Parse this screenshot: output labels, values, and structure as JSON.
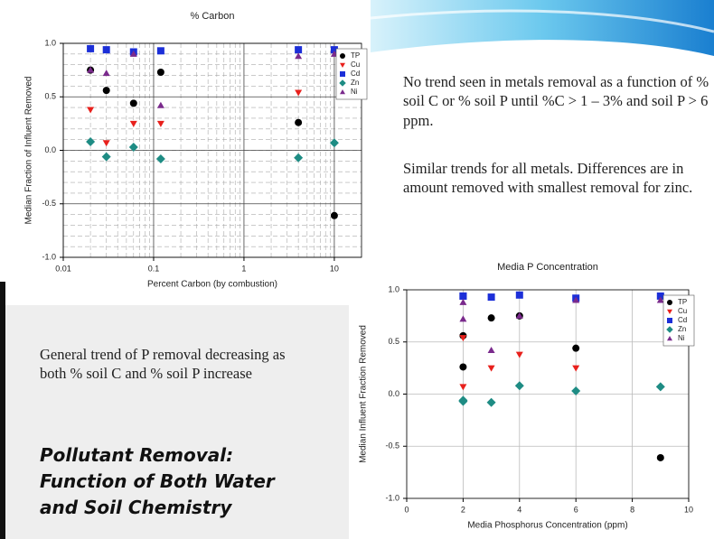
{
  "chart_data": [
    {
      "type": "scatter",
      "title": "% Carbon",
      "x_label": "Percent Carbon (by combustion)",
      "y_label": "Median Fraction of Influent Removed",
      "xscale": "log",
      "xlim": [
        0.01,
        20
      ],
      "xticks": [
        0.01,
        0.1,
        1,
        10
      ],
      "ylim": [
        -1,
        1
      ],
      "yticks": [
        {
          "value": -1,
          "label": "-1.0"
        },
        -0.5,
        {
          "value": 0,
          "label": "0.0"
        },
        0.5,
        {
          "value": 1,
          "label": "1.0"
        }
      ],
      "grid": true,
      "minor_grid": true,
      "legend": "upper right",
      "x": [
        0.02,
        0.03,
        0.06,
        0.12,
        4,
        10
      ],
      "series": [
        {
          "name": "TP",
          "color": "#000000",
          "marker": "circle",
          "values": [
            0.75,
            0.56,
            0.44,
            0.73,
            0.26,
            -0.61
          ]
        },
        {
          "name": "Cu",
          "color": "#e8201c",
          "marker": "triangle-down",
          "values": [
            0.38,
            0.07,
            0.25,
            0.25,
            0.54,
            0.92
          ]
        },
        {
          "name": "Cd",
          "color": "#1c2fd8",
          "marker": "square",
          "values": [
            0.95,
            0.94,
            0.92,
            0.93,
            0.94,
            0.94
          ]
        },
        {
          "name": "Zn",
          "color": "#1e8c84",
          "marker": "diamond",
          "values": [
            0.08,
            -0.06,
            0.03,
            -0.08,
            -0.07,
            0.07
          ]
        },
        {
          "name": "Ni",
          "color": "#7a2a8c",
          "marker": "triangle-up",
          "values": [
            0.75,
            0.72,
            0.9,
            0.42,
            0.88,
            0.9
          ]
        }
      ]
    },
    {
      "type": "scatter",
      "title": "Media P Concentration",
      "x_label": "Media Phosphorus Concentration (ppm)",
      "y_label": "Median Influent Fraction Removed",
      "xscale": "linear",
      "xlim": [
        0,
        10
      ],
      "xticks": [
        0,
        2,
        4,
        6,
        8,
        10
      ],
      "ylim": [
        -1,
        1
      ],
      "yticks": [
        {
          "value": -1,
          "label": "-1.0"
        },
        -0.5,
        {
          "value": 0,
          "label": "0.0"
        },
        0.5,
        {
          "value": 1,
          "label": "1.0"
        }
      ],
      "grid": true,
      "minor_grid": false,
      "legend": "upper right",
      "x": [
        4,
        2,
        6,
        3,
        2,
        9
      ],
      "series": [
        {
          "name": "TP",
          "color": "#000000",
          "marker": "circle",
          "values": [
            0.75,
            0.56,
            0.44,
            0.73,
            0.26,
            -0.61
          ]
        },
        {
          "name": "Cu",
          "color": "#e8201c",
          "marker": "triangle-down",
          "values": [
            0.38,
            0.07,
            0.25,
            0.25,
            0.54,
            0.92
          ]
        },
        {
          "name": "Cd",
          "color": "#1c2fd8",
          "marker": "square",
          "values": [
            0.95,
            0.94,
            0.92,
            0.93,
            0.94,
            0.94
          ]
        },
        {
          "name": "Zn",
          "color": "#1e8c84",
          "marker": "diamond",
          "values": [
            0.08,
            -0.06,
            0.03,
            -0.08,
            -0.07,
            0.07
          ]
        },
        {
          "name": "Ni",
          "color": "#7a2a8c",
          "marker": "triangle-up",
          "values": [
            0.75,
            0.72,
            0.9,
            0.42,
            0.88,
            0.9
          ]
        }
      ]
    }
  ],
  "notes": {
    "trend_text": "No trend seen in metals removal as a function of % soil C or % soil P until %C > 1 – 3% and soil P > 6 ppm.",
    "similar_text": "Similar trends for all metals. Differences are in amount removed with smallest removal for zinc.",
    "p_text": "General trend of P removal decreasing as both % soil C and % soil P increase",
    "heading": "Pollutant Removal: Function of Both Water and Soil Chemistry"
  }
}
